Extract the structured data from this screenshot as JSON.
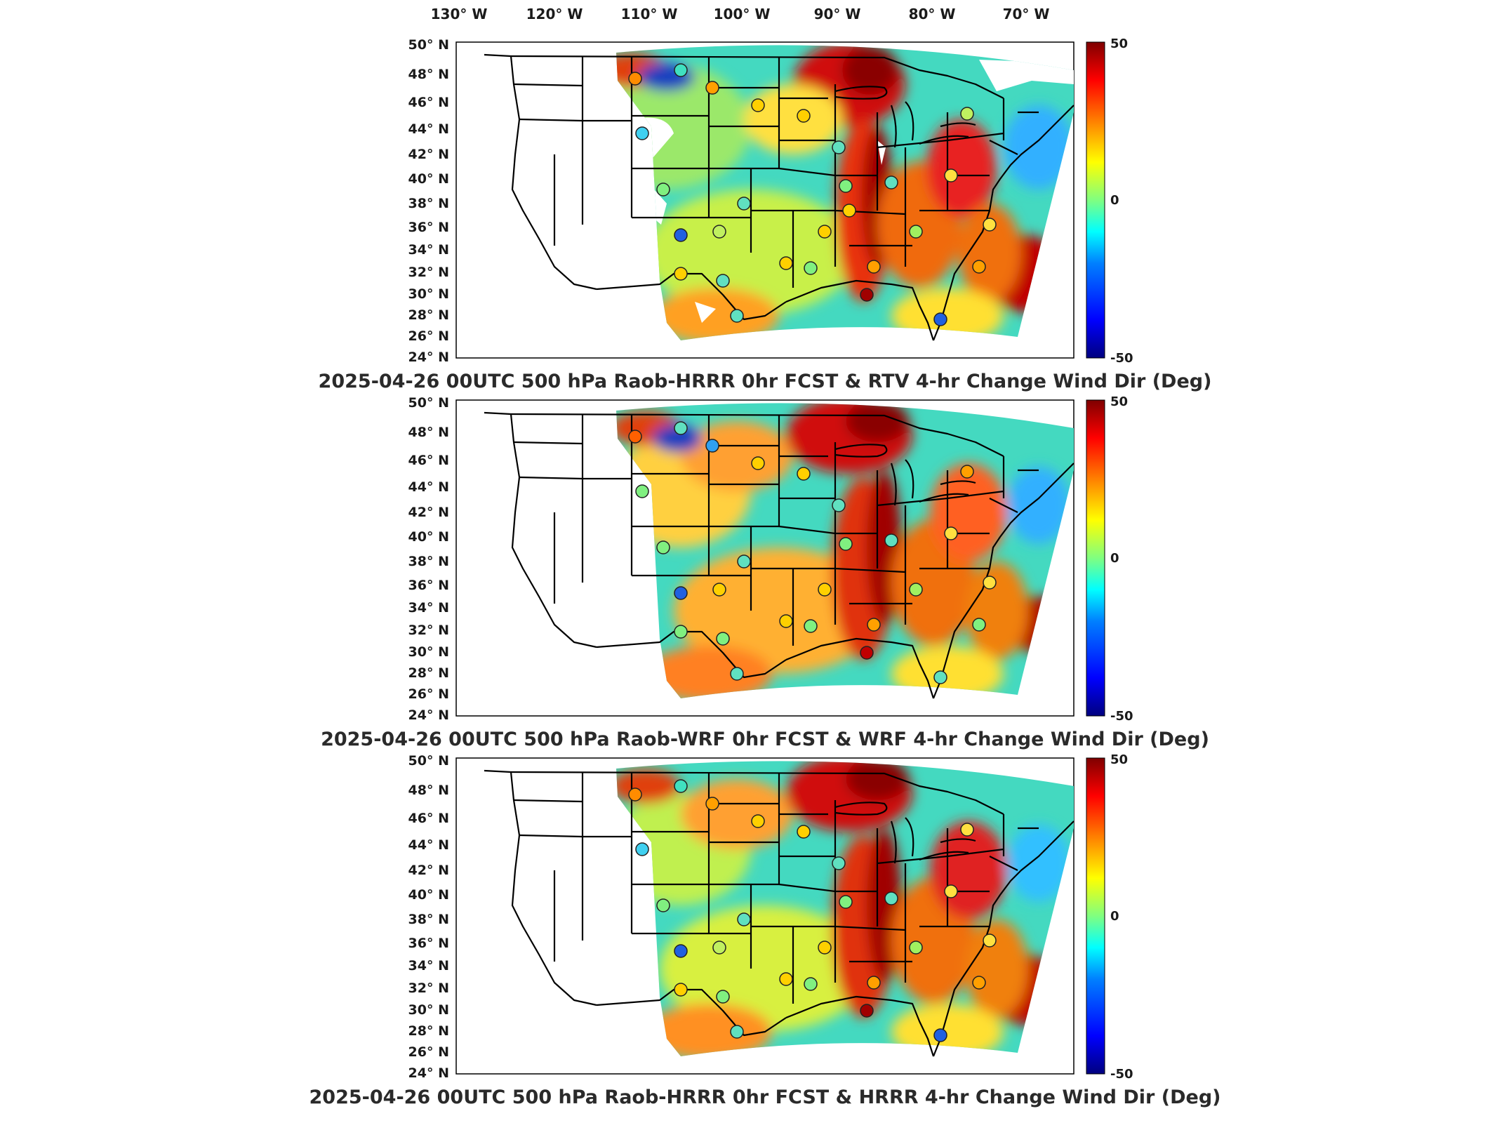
{
  "longitude_labels": [
    "130° W",
    "120° W",
    "110° W",
    "100° W",
    "90° W",
    "80° W",
    "70° W"
  ],
  "latitude_labels": [
    "50° N",
    "48° N",
    "46° N",
    "44° N",
    "42° N",
    "40° N",
    "38° N",
    "36° N",
    "34° N",
    "32° N",
    "30° N",
    "28° N",
    "26° N",
    "24° N"
  ],
  "colorbar": {
    "max_label": "50",
    "mid_label": "0",
    "min_label": "-50",
    "colors": [
      "#00007f",
      "#0000ff",
      "#0080ff",
      "#00ffff",
      "#80ff80",
      "#ffff00",
      "#ff8000",
      "#ff0000",
      "#7f0000"
    ]
  },
  "panels": [
    {
      "title": "2025-04-26 00UTC 500 hPa Raob-HRRR 0hr FCST & RTV 4-hr Change Wind Dir (Deg)",
      "has_data_gaps": true
    },
    {
      "title": "2025-04-26 00UTC 500 hPa Raob-WRF 0hr FCST & WRF 4-hr Change Wind Dir (Deg)",
      "has_data_gaps": false
    },
    {
      "title": "2025-04-26 00UTC 500 hPa Raob-HRRR 0hr FCST & HRRR 4-hr Change Wind Dir (Deg)",
      "has_data_gaps": false
    }
  ],
  "map": {
    "projection_note": "CONUS Lambert-style domain",
    "field_variable": "4-hr change wind direction",
    "units": "Deg",
    "color_range": [
      -50,
      50
    ]
  }
}
